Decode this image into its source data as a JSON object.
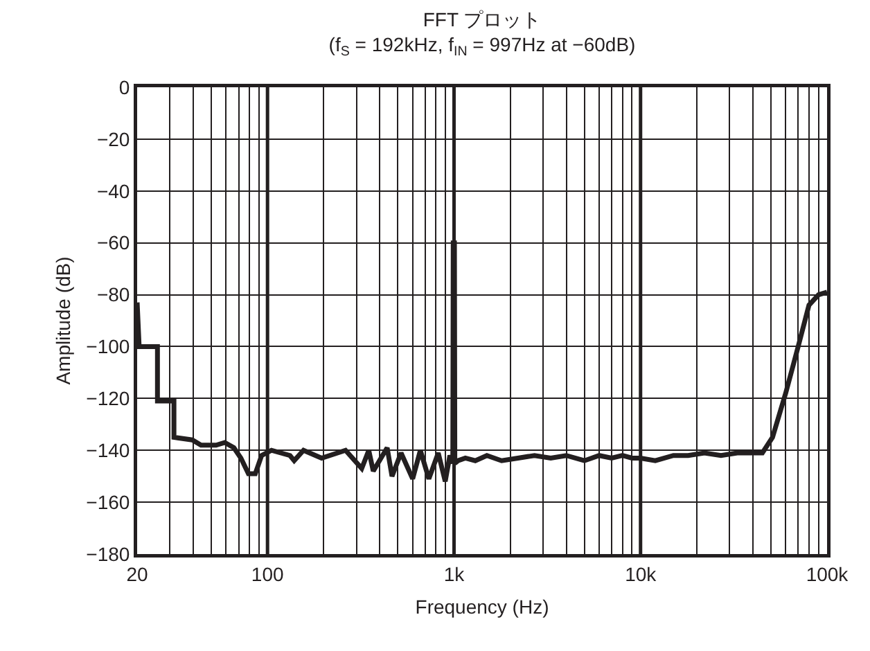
{
  "chart_data": {
    "type": "line",
    "title": "FFT プロット",
    "subtitle": "(f$_{S}$ = 192kHz, f$_{IN}$ = 997Hz at −60dB)",
    "xlabel": "Frequency (Hz)",
    "ylabel": "Amplitude (dB)",
    "log": "x",
    "grid": true,
    "marker": "none",
    "line_style": "solid",
    "xlim": [
      20,
      100000
    ],
    "xticks": [
      {
        "value": 20,
        "label": "20"
      },
      {
        "value": 30,
        "label": null
      },
      {
        "value": 40,
        "label": null
      },
      {
        "value": 50,
        "label": null
      },
      {
        "value": 60,
        "label": null
      },
      {
        "value": 70,
        "label": null
      },
      {
        "value": 80,
        "label": null
      },
      {
        "value": 90,
        "label": null
      },
      {
        "value": 100,
        "label": "100"
      },
      {
        "value": 200,
        "label": null
      },
      {
        "value": 300,
        "label": null
      },
      {
        "value": 400,
        "label": null
      },
      {
        "value": 500,
        "label": null
      },
      {
        "value": 600,
        "label": null
      },
      {
        "value": 700,
        "label": null
      },
      {
        "value": 800,
        "label": null
      },
      {
        "value": 900,
        "label": null
      },
      {
        "value": 1000,
        "label": "1k"
      },
      {
        "value": 2000,
        "label": null
      },
      {
        "value": 3000,
        "label": null
      },
      {
        "value": 4000,
        "label": null
      },
      {
        "value": 5000,
        "label": null
      },
      {
        "value": 6000,
        "label": null
      },
      {
        "value": 7000,
        "label": null
      },
      {
        "value": 8000,
        "label": null
      },
      {
        "value": 9000,
        "label": null
      },
      {
        "value": 10000,
        "label": "10k"
      },
      {
        "value": 20000,
        "label": null
      },
      {
        "value": 30000,
        "label": null
      },
      {
        "value": 40000,
        "label": null
      },
      {
        "value": 50000,
        "label": null
      },
      {
        "value": 60000,
        "label": null
      },
      {
        "value": 70000,
        "label": null
      },
      {
        "value": 80000,
        "label": null
      },
      {
        "value": 90000,
        "label": null
      },
      {
        "value": 100000,
        "label": "100k"
      }
    ],
    "ylim": [
      -180,
      0
    ],
    "yticks": [
      {
        "value": -180,
        "label": "−180"
      },
      {
        "value": -160,
        "label": "−160"
      },
      {
        "value": -140,
        "label": "−140"
      },
      {
        "value": -120,
        "label": "−120"
      },
      {
        "value": -100,
        "label": "−100"
      },
      {
        "value": -80,
        "label": "−80"
      },
      {
        "value": -60,
        "label": "−60"
      },
      {
        "value": -40,
        "label": "−40"
      },
      {
        "value": -20,
        "label": "−20"
      },
      {
        "value": 0,
        "label": "0"
      }
    ],
    "series": [
      {
        "color": "#231f20",
        "x": [
          20,
          20.5,
          20.5,
          25.7,
          25.7,
          31.5,
          31.5,
          39.5,
          44,
          53,
          59,
          66,
          72,
          79,
          86,
          93,
          105,
          132,
          139,
          156,
          195,
          262,
          320,
          349,
          369,
          438,
          465,
          520,
          600,
          660,
          733,
          823,
          897,
          950,
          985,
          990,
          997,
          1005,
          1010,
          1050,
          1150,
          1300,
          1500,
          1800,
          2200,
          2700,
          3300,
          4000,
          5000,
          6000,
          7000,
          8000,
          9000,
          10000,
          12000,
          15000,
          18000,
          22000,
          27000,
          33000,
          40000,
          45000,
          51000,
          60000,
          70000,
          80000,
          90000,
          100000
        ],
        "values": [
          -83,
          -100,
          -100,
          -100,
          -121,
          -121,
          -135,
          -136,
          -138,
          -138,
          -137,
          -139,
          -143,
          -149,
          -149,
          -142,
          -140,
          -142,
          -144,
          -140,
          -143,
          -140,
          -147,
          -140,
          -148,
          -139,
          -150,
          -141,
          -151,
          -140,
          -151,
          -141,
          -152,
          -142,
          -145,
          -60,
          -60,
          -60,
          -145,
          -144,
          -143,
          -144,
          -142,
          -144,
          -143,
          -142,
          -143,
          -142,
          -144,
          -142,
          -143,
          -142,
          -143,
          -143,
          -144,
          -142,
          -142,
          -141,
          -142,
          -141,
          -141,
          -141,
          -135,
          -118,
          -100,
          -84,
          -80,
          -79
        ]
      }
    ]
  }
}
